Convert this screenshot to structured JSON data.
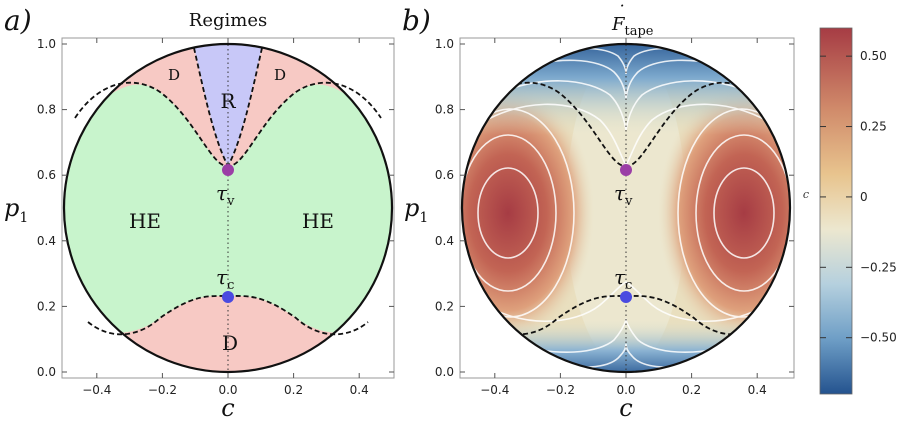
{
  "chart_data": [
    {
      "panel_label": "a)",
      "title": "Regimes",
      "type": "heatmap",
      "subtype": "regime-map",
      "xlabel": "c",
      "ylabel": "p",
      "ylabel_sub": "1",
      "xlim": [
        -0.5,
        0.5
      ],
      "ylim": [
        0.0,
        1.0
      ],
      "xticks": [
        "−0.4",
        "−0.2",
        "0.0",
        "0.2",
        "0.4"
      ],
      "xtick_values": [
        -0.4,
        -0.2,
        0.0,
        0.2,
        0.4
      ],
      "yticks": [
        "0.0",
        "0.2",
        "0.4",
        "0.6",
        "0.8",
        "1.0"
      ],
      "ytick_values": [
        0.0,
        0.2,
        0.4,
        0.6,
        0.8,
        1.0
      ],
      "domain": "disk |c|² + (p1 − 0.5)² ≤ 0.25",
      "regions": [
        {
          "label": "HE",
          "color": "#c8f4cc",
          "text_at": [
            -0.26,
            0.5
          ]
        },
        {
          "label": "HE",
          "color": "#c8f4cc",
          "text_at": [
            0.26,
            0.5
          ]
        },
        {
          "label": "R",
          "color": "#c8c8f8",
          "text_at": [
            0.0,
            0.85
          ]
        },
        {
          "label": "D",
          "color": "#f7c9c4",
          "text_at": [
            0.0,
            0.09
          ]
        },
        {
          "label": "D",
          "color": "#f7c9c4",
          "text_at": [
            -0.17,
            0.94
          ]
        },
        {
          "label": "D",
          "color": "#f7c9c4",
          "text_at": [
            0.17,
            0.94
          ]
        }
      ],
      "boundary_upper": {
        "x": [
          -0.4,
          -0.3,
          -0.2,
          -0.12,
          -0.06,
          0.0,
          0.06,
          0.12,
          0.2,
          0.3,
          0.4
        ],
        "y": [
          0.86,
          0.88,
          0.82,
          0.72,
          0.66,
          0.63,
          0.66,
          0.72,
          0.82,
          0.88,
          0.86
        ]
      },
      "boundary_lower": {
        "x": [
          -0.36,
          -0.3,
          -0.2,
          -0.12,
          -0.06,
          0.0,
          0.06,
          0.12,
          0.2,
          0.3,
          0.36
        ],
        "y": [
          0.16,
          0.12,
          0.14,
          0.2,
          0.23,
          0.24,
          0.23,
          0.2,
          0.14,
          0.12,
          0.16
        ]
      },
      "boundary_R": {
        "x": [
          -0.12,
          -0.08,
          -0.04,
          0.0,
          0.04,
          0.08,
          0.12
        ],
        "y": [
          0.98,
          0.85,
          0.72,
          0.63,
          0.72,
          0.85,
          0.98
        ]
      },
      "points": [
        {
          "label": "τ",
          "sub": "v",
          "x": 0.0,
          "y": 0.63,
          "color": "#9b3ea6"
        },
        {
          "label": "τ",
          "sub": "c",
          "x": 0.0,
          "y": 0.23,
          "color": "#4a4ae0"
        }
      ]
    },
    {
      "panel_label": "b)",
      "title": "F",
      "title_sub": "tape",
      "title_accent": "˙",
      "type": "heatmap",
      "xlabel": "c",
      "ylabel": "p",
      "ylabel_sub": "1",
      "xlim": [
        -0.5,
        0.5
      ],
      "ylim": [
        0.0,
        1.0
      ],
      "xticks": [
        "−0.4",
        "−0.2",
        "0.0",
        "0.2",
        "0.4"
      ],
      "xtick_values": [
        -0.4,
        -0.2,
        0.0,
        0.2,
        0.4
      ],
      "yticks": [
        "0.0",
        "0.2",
        "0.4",
        "0.6",
        "0.8",
        "1.0"
      ],
      "ytick_values": [
        0.0,
        0.2,
        0.4,
        0.6,
        0.8,
        1.0
      ],
      "hotspots": [
        {
          "x": -0.37,
          "y": 0.5,
          "value": 0.55
        },
        {
          "x": 0.37,
          "y": 0.5,
          "value": 0.55
        }
      ],
      "points": [
        {
          "label": "τ",
          "sub": "v",
          "x": 0.0,
          "y": 0.63,
          "color": "#9b3ea6"
        },
        {
          "label": "τ",
          "sub": "c",
          "x": 0.0,
          "y": 0.23,
          "color": "#4a4ae0"
        }
      ],
      "colorbar": {
        "label": "c",
        "range": [
          -0.7,
          0.6
        ],
        "ticks": [
          "0.50",
          "0.25",
          "0",
          "−0.25",
          "−0.50"
        ],
        "tick_values": [
          0.5,
          0.25,
          0.0,
          -0.25,
          -0.5
        ],
        "colors": [
          "#2b5c9a",
          "#6fa0c8",
          "#b9d4e0",
          "#eae6cc",
          "#e8c28e",
          "#d08a6a",
          "#a84a4e"
        ]
      }
    }
  ]
}
